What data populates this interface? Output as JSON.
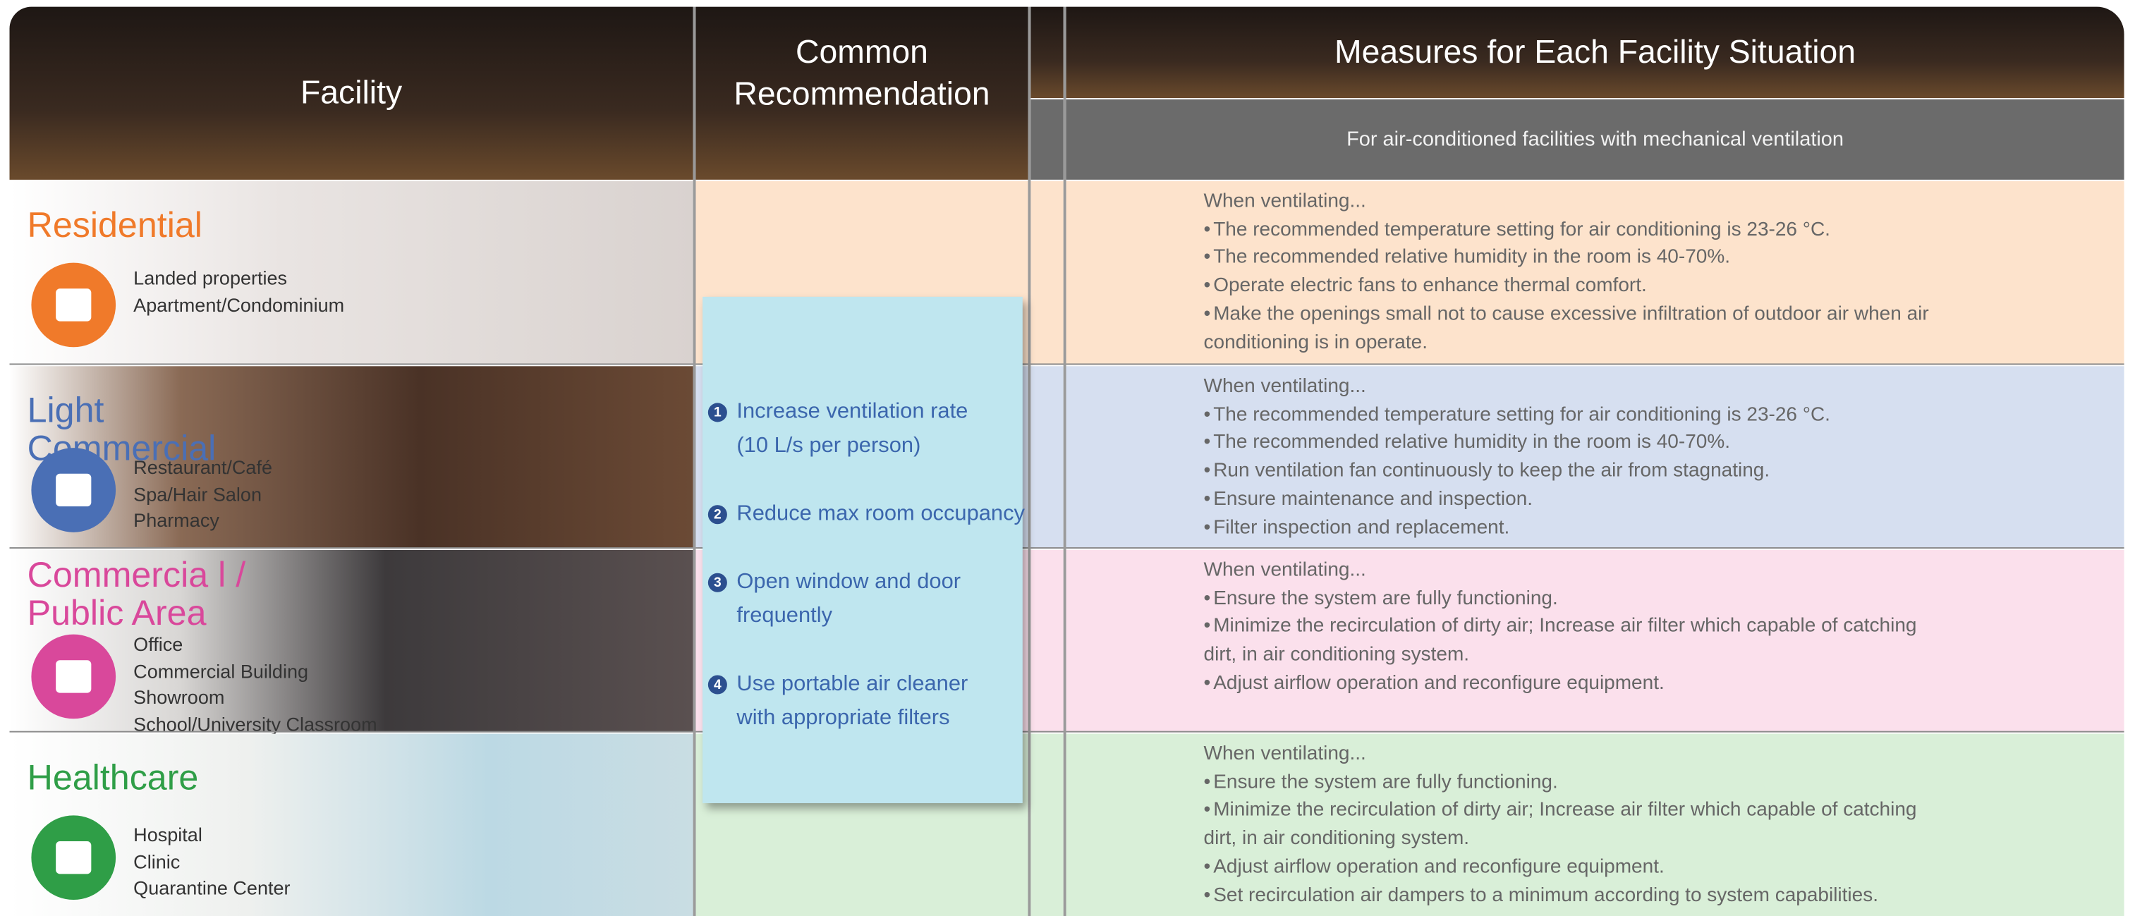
{
  "header": {
    "facility": "Facility",
    "common": "Common Recommendation",
    "measures": "Measures for Each Facility Situation",
    "measures_subtitle": "For air-conditioned facilities with mechanical ventilation"
  },
  "rows": [
    {
      "name": "Residential",
      "items": [
        "Landed properties",
        "Apartment/Condominium"
      ],
      "intro": "When ventilating...",
      "measures": [
        "The recommended temperature setting for air conditioning is 23-26 °C.",
        "The recommended relative humidity in the room is 40-70%.",
        "Operate electric fans to enhance thermal comfort.",
        "Make the openings small not to cause excessive infiltration of outdoor air when air conditioning is in operate."
      ]
    },
    {
      "name": "Light Commercial",
      "items": [
        "Restaurant/Café",
        "Spa/Hair Salon",
        "Pharmacy"
      ],
      "intro": "When ventilating...",
      "measures": [
        "The recommended temperature setting for air conditioning is 23-26 °C.",
        "The recommended relative humidity in the room is 40-70%.",
        "Run ventilation fan continuously to keep the air from stagnating.",
        "Ensure maintenance and inspection.",
        "Filter inspection and replacement."
      ]
    },
    {
      "name": "Commercia l / Public Area",
      "items": [
        "Office",
        "Commercial Building",
        "Showroom",
        "School/University Classroom"
      ],
      "intro": "When ventilating...",
      "measures": [
        "Ensure the system are fully functioning.",
        "Minimize the recirculation of dirty air; Increase air filter which capable of catching dirt, in air conditioning system.",
        "Adjust airflow operation and reconfigure equipment."
      ]
    },
    {
      "name": "Healthcare",
      "items": [
        "Hospital",
        "Clinic",
        "Quarantine Center"
      ],
      "intro": "When ventilating...",
      "measures": [
        "Ensure the system are fully functioning.",
        "Minimize the recirculation of dirty air; Increase air filter which capable of catching dirt, in air conditioning system.",
        "Adjust airflow operation and reconfigure equipment.",
        "Set recirculation air dampers to a minimum according to system capabilities."
      ]
    }
  ],
  "recommendations": [
    {
      "number": "1",
      "text": "Increase ventilation rate (10 L/s per person)"
    },
    {
      "number": "2",
      "text": "Reduce max room occupancy"
    },
    {
      "number": "3",
      "text": "Open window and door frequently"
    },
    {
      "number": "4",
      "text": "Use portable air cleaner with appropriate filters"
    }
  ]
}
